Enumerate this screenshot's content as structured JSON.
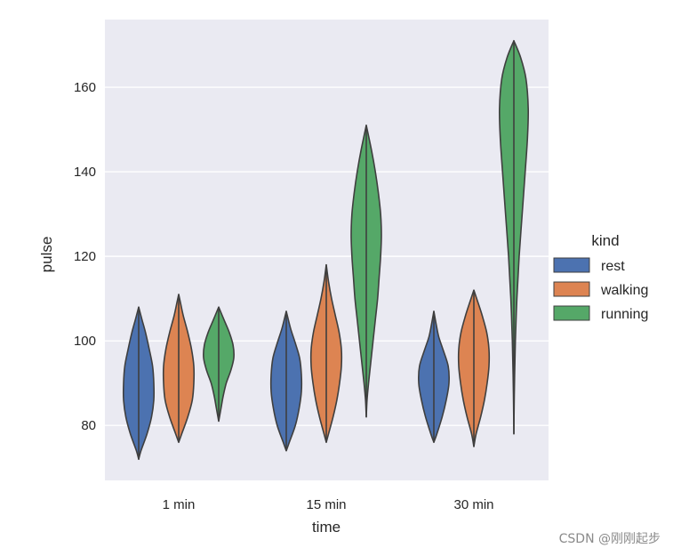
{
  "chart_data": {
    "type": "violin",
    "xlabel": "time",
    "ylabel": "pulse",
    "categories": [
      "1 min",
      "15 min",
      "30 min"
    ],
    "yticks": [
      80,
      100,
      120,
      140,
      160
    ],
    "ylim": [
      67,
      176
    ],
    "grid": true,
    "legend": {
      "title": "kind",
      "placement": "right"
    },
    "series": [
      {
        "name": "rest",
        "color": "#4c72b0",
        "violins": [
          {
            "min": 72,
            "max": 108,
            "profile": [
              [
                72,
                0.0
              ],
              [
                74,
                0.15
              ],
              [
                78,
                0.55
              ],
              [
                82,
                0.85
              ],
              [
                86,
                1.0
              ],
              [
                90,
                1.0
              ],
              [
                94,
                0.92
              ],
              [
                98,
                0.7
              ],
              [
                102,
                0.45
              ],
              [
                105,
                0.22
              ],
              [
                108,
                0.0
              ]
            ]
          },
          {
            "min": 74,
            "max": 107,
            "profile": [
              [
                74,
                0.0
              ],
              [
                76,
                0.2
              ],
              [
                80,
                0.6
              ],
              [
                84,
                0.85
              ],
              [
                88,
                1.0
              ],
              [
                92,
                1.0
              ],
              [
                96,
                0.88
              ],
              [
                100,
                0.55
              ],
              [
                103,
                0.28
              ],
              [
                107,
                0.0
              ]
            ]
          },
          {
            "min": 76,
            "max": 107,
            "profile": [
              [
                76,
                0.0
              ],
              [
                78,
                0.2
              ],
              [
                82,
                0.55
              ],
              [
                86,
                0.82
              ],
              [
                90,
                1.0
              ],
              [
                94,
                0.95
              ],
              [
                98,
                0.6
              ],
              [
                101,
                0.32
              ],
              [
                104,
                0.15
              ],
              [
                107,
                0.0
              ]
            ]
          }
        ]
      },
      {
        "name": "walking",
        "color": "#dd8452",
        "violins": [
          {
            "min": 76,
            "max": 111,
            "profile": [
              [
                76,
                0.0
              ],
              [
                78,
                0.2
              ],
              [
                82,
                0.6
              ],
              [
                86,
                0.9
              ],
              [
                90,
                1.0
              ],
              [
                94,
                1.0
              ],
              [
                98,
                0.85
              ],
              [
                102,
                0.6
              ],
              [
                106,
                0.3
              ],
              [
                109,
                0.12
              ],
              [
                111,
                0.0
              ]
            ]
          },
          {
            "min": 76,
            "max": 118,
            "profile": [
              [
                76,
                0.0
              ],
              [
                78,
                0.15
              ],
              [
                82,
                0.45
              ],
              [
                86,
                0.7
              ],
              [
                90,
                0.88
              ],
              [
                94,
                1.0
              ],
              [
                98,
                1.0
              ],
              [
                102,
                0.85
              ],
              [
                106,
                0.6
              ],
              [
                110,
                0.35
              ],
              [
                114,
                0.15
              ],
              [
                118,
                0.0
              ]
            ]
          },
          {
            "min": 75,
            "max": 112,
            "profile": [
              [
                75,
                0.0
              ],
              [
                78,
                0.15
              ],
              [
                82,
                0.45
              ],
              [
                86,
                0.7
              ],
              [
                90,
                0.88
              ],
              [
                94,
                1.0
              ],
              [
                98,
                1.0
              ],
              [
                102,
                0.85
              ],
              [
                106,
                0.55
              ],
              [
                109,
                0.28
              ],
              [
                112,
                0.0
              ]
            ]
          }
        ]
      },
      {
        "name": "running",
        "color": "#55a868",
        "violins": [
          {
            "min": 81,
            "max": 108,
            "profile": [
              [
                81,
                0.0
              ],
              [
                84,
                0.15
              ],
              [
                87,
                0.3
              ],
              [
                90,
                0.5
              ],
              [
                93,
                0.8
              ],
              [
                96,
                1.0
              ],
              [
                99,
                0.95
              ],
              [
                102,
                0.7
              ],
              [
                105,
                0.35
              ],
              [
                108,
                0.0
              ]
            ]
          },
          {
            "min": 82,
            "max": 151,
            "profile": [
              [
                82,
                0.0
              ],
              [
                86,
                0.05
              ],
              [
                90,
                0.15
              ],
              [
                95,
                0.3
              ],
              [
                100,
                0.45
              ],
              [
                105,
                0.6
              ],
              [
                110,
                0.75
              ],
              [
                115,
                0.85
              ],
              [
                120,
                0.95
              ],
              [
                125,
                1.0
              ],
              [
                130,
                0.95
              ],
              [
                135,
                0.8
              ],
              [
                140,
                0.6
              ],
              [
                145,
                0.35
              ],
              [
                151,
                0.0
              ]
            ]
          },
          {
            "min": 78,
            "max": 171,
            "profile": [
              [
                78,
                0.0
              ],
              [
                85,
                0.02
              ],
              [
                92,
                0.05
              ],
              [
                100,
                0.1
              ],
              [
                110,
                0.2
              ],
              [
                120,
                0.35
              ],
              [
                130,
                0.55
              ],
              [
                140,
                0.75
              ],
              [
                148,
                0.9
              ],
              [
                155,
                0.95
              ],
              [
                162,
                0.8
              ],
              [
                167,
                0.45
              ],
              [
                171,
                0.0
              ]
            ]
          }
        ]
      }
    ]
  },
  "watermark": "CSDN @刚刚起步"
}
